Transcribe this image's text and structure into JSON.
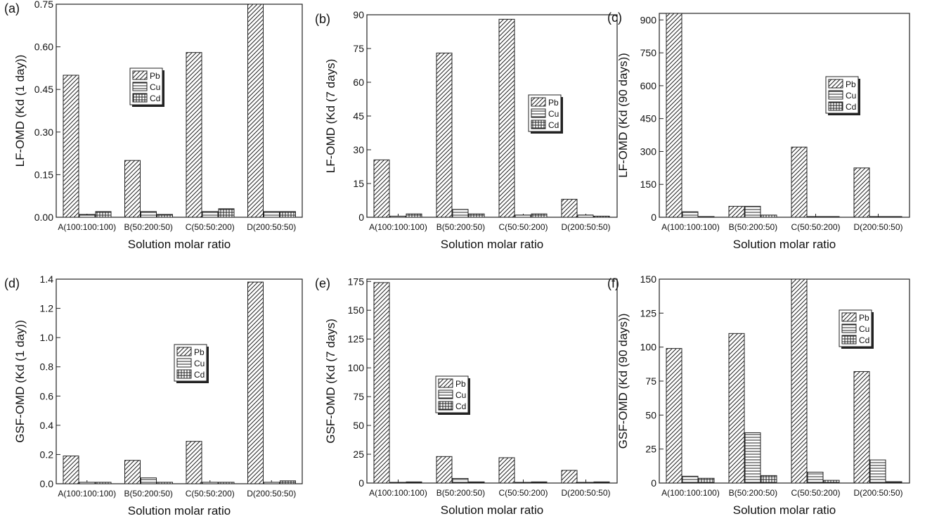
{
  "chart_data": [
    {
      "panel": "(a)",
      "type": "bar",
      "ylabel": "LF-OMD (Kd (1 day))",
      "xlabel": "Solution molar ratio",
      "categories": [
        "A(100:100:100)",
        "B(50:200:50)",
        "C(50:50:200)",
        "D(200:50:50)"
      ],
      "ylim": [
        0,
        0.75
      ],
      "yticks": [
        "0.00",
        "0.15",
        "0.30",
        "0.45",
        "0.60",
        "0.75"
      ],
      "series": [
        {
          "name": "Pb",
          "values": [
            0.5,
            0.2,
            0.58,
            0.75
          ]
        },
        {
          "name": "Cu",
          "values": [
            0.01,
            0.02,
            0.02,
            0.02
          ]
        },
        {
          "name": "Cd",
          "values": [
            0.02,
            0.01,
            0.03,
            0.02
          ]
        }
      ],
      "legend_position": "center"
    },
    {
      "panel": "(b)",
      "type": "bar",
      "ylabel": "LF-OMD (Kd (7 days)",
      "xlabel": "Solution molar ratio",
      "categories": [
        "A(100:100:100)",
        "B(50:200:50)",
        "C(50:50:200)",
        "D(200:50:50)"
      ],
      "ylim": [
        0,
        90
      ],
      "yticks": [
        "0",
        "15",
        "30",
        "45",
        "60",
        "75",
        "90"
      ],
      "series": [
        {
          "name": "Pb",
          "values": [
            25.5,
            73,
            88,
            8
          ]
        },
        {
          "name": "Cu",
          "values": [
            0.5,
            3.5,
            1,
            1
          ]
        },
        {
          "name": "Cd",
          "values": [
            1.5,
            1.5,
            1.5,
            0.5
          ]
        }
      ],
      "legend_position": "right"
    },
    {
      "panel": "(c)",
      "type": "bar",
      "ylabel": "LF-OMD (Kd  (90 days))",
      "xlabel": "Solution molar ratio",
      "categories": [
        "A(100:100:100)",
        "B(50:200:50)",
        "C(50:50:200)",
        "D(200:50:50)"
      ],
      "ylim": [
        0,
        930
      ],
      "yticks": [
        "0",
        "150",
        "300",
        "450",
        "600",
        "750",
        "900"
      ],
      "series": [
        {
          "name": "Pb",
          "values": [
            930,
            50,
            320,
            225
          ]
        },
        {
          "name": "Cu",
          "values": [
            25,
            50,
            2,
            2
          ]
        },
        {
          "name": "Cd",
          "values": [
            3,
            10,
            2,
            1
          ]
        }
      ],
      "legend_position": "right"
    },
    {
      "panel": "(d)",
      "type": "bar",
      "ylabel": "GSF-OMD (Kd (1 day))",
      "xlabel": "Solution molar ratio",
      "categories": [
        "A(100:100:100)",
        "B(50:200:50)",
        "C(50:50:200)",
        "D(200:50:50)"
      ],
      "ylim": [
        0,
        1.4
      ],
      "yticks": [
        "0.0",
        "0.2",
        "0.4",
        "0.6",
        "0.8",
        "1.0",
        "1.2",
        "1.4"
      ],
      "series": [
        {
          "name": "Pb",
          "values": [
            0.19,
            0.16,
            0.29,
            1.38
          ]
        },
        {
          "name": "Cu",
          "values": [
            0.01,
            0.04,
            0.01,
            0.01
          ]
        },
        {
          "name": "Cd",
          "values": [
            0.01,
            0.01,
            0.01,
            0.02
          ]
        }
      ],
      "legend_position": "center"
    },
    {
      "panel": "(e)",
      "type": "bar",
      "ylabel": "GSF-OMD (Kd (7 days)",
      "xlabel": "Solution molar ratio",
      "categories": [
        "A(100:100:100)",
        "B(50:200:50)",
        "C(50:50:200)",
        "D(200:50:50)"
      ],
      "ylim": [
        0,
        177
      ],
      "yticks": [
        "0",
        "25",
        "50",
        "75",
        "100",
        "125",
        "150",
        "175"
      ],
      "series": [
        {
          "name": "Pb",
          "values": [
            174,
            23,
            22,
            11
          ]
        },
        {
          "name": "Cu",
          "values": [
            0.5,
            4,
            0.5,
            0.5
          ]
        },
        {
          "name": "Cd",
          "values": [
            1,
            1,
            1,
            1
          ]
        }
      ],
      "legend_position": "center"
    },
    {
      "panel": "(f)",
      "type": "bar",
      "ylabel": "GSF-OMD (Kd  (90 days))",
      "xlabel": "Solution molar ratio",
      "categories": [
        "A(100:100:100)",
        "B(50:200:50)",
        "C(50:50:200)",
        "D(200:50:50)"
      ],
      "ylim": [
        0,
        150
      ],
      "yticks": [
        "0",
        "25",
        "50",
        "75",
        "100",
        "125",
        "150"
      ],
      "series": [
        {
          "name": "Pb",
          "values": [
            99,
            110,
            150,
            82
          ]
        },
        {
          "name": "Cu",
          "values": [
            5,
            37,
            8,
            17
          ]
        },
        {
          "name": "Cd",
          "values": [
            3.5,
            5.5,
            2,
            1
          ]
        }
      ],
      "legend_position": "top-right"
    }
  ]
}
